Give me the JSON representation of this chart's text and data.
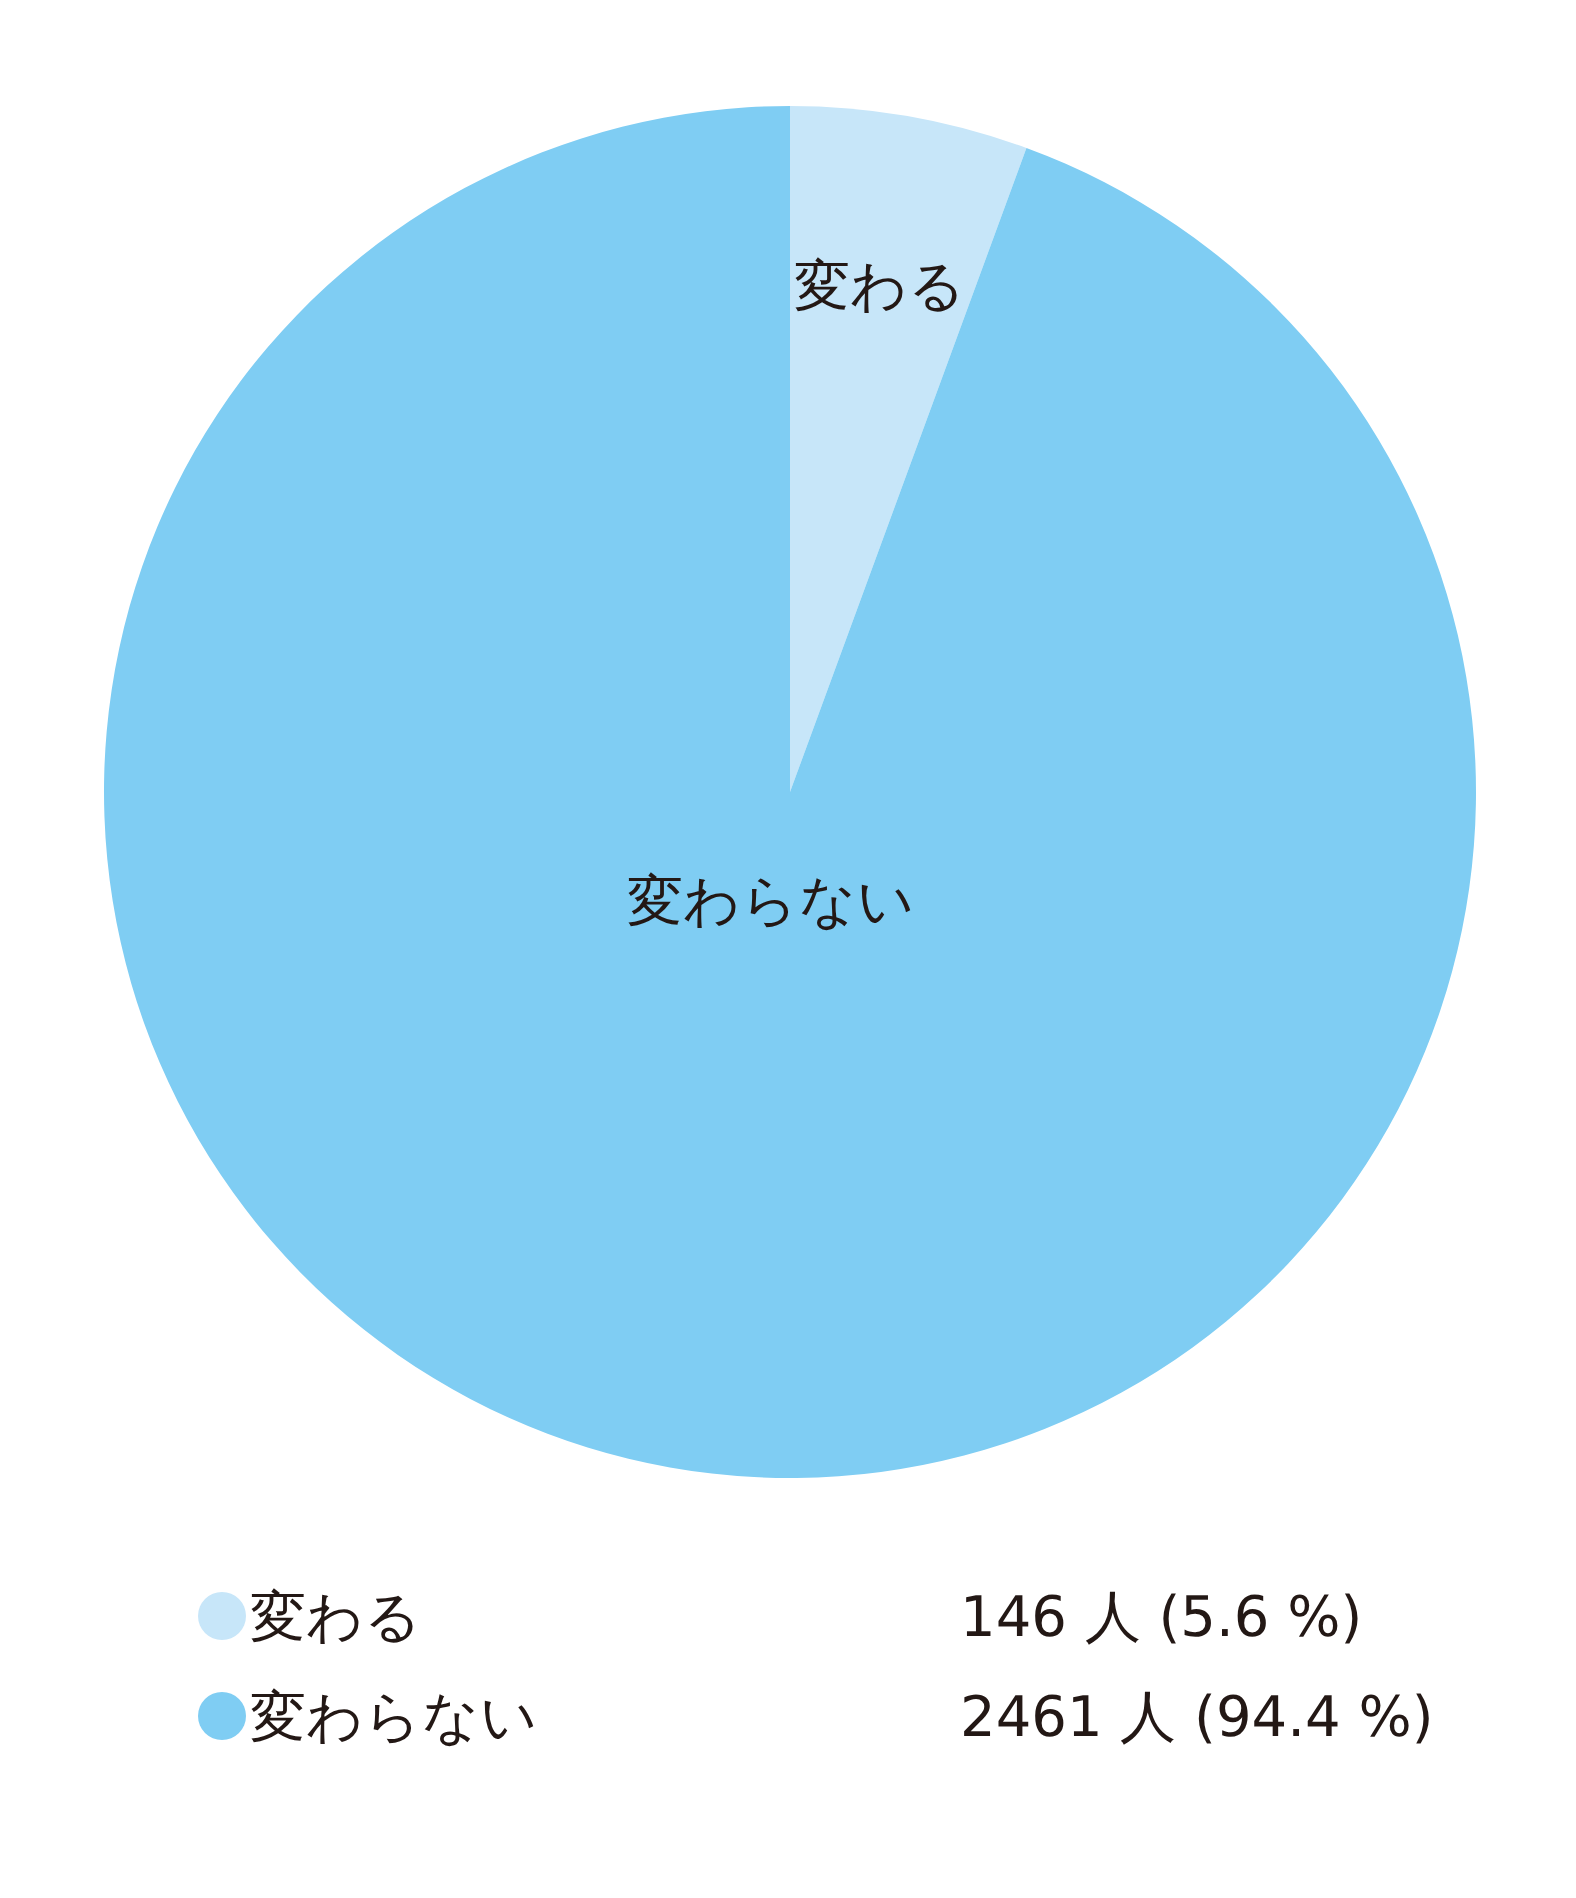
{
  "chart_data": {
    "type": "pie",
    "categories": [
      "変わる",
      "変わらない"
    ],
    "values": [
      146,
      2461
    ],
    "colors": [
      "#c7e6f9",
      "#7fcdf3"
    ],
    "value_labels": [
      "146 人 (5.6 %)",
      "2461 人 (94.4 %)"
    ],
    "legend": "bottom"
  }
}
